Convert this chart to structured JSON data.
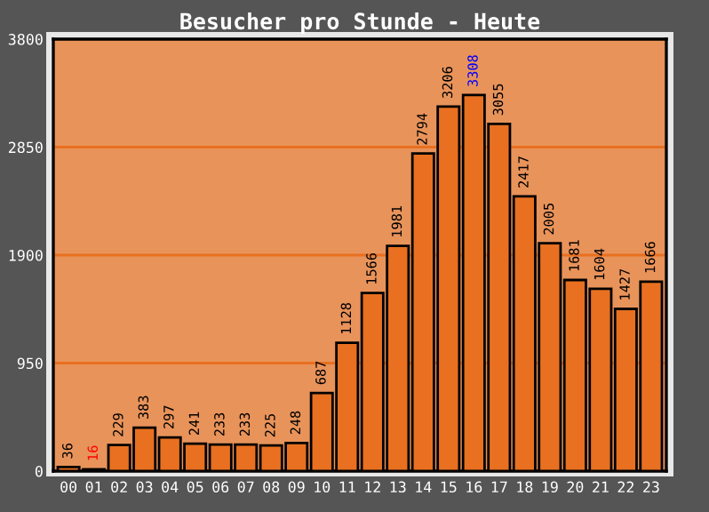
{
  "chart_data": {
    "type": "bar",
    "title": "Besucher pro Stunde - Heute",
    "categories": [
      "00",
      "01",
      "02",
      "03",
      "04",
      "05",
      "06",
      "07",
      "08",
      "09",
      "10",
      "11",
      "12",
      "13",
      "14",
      "15",
      "16",
      "17",
      "18",
      "19",
      "20",
      "21",
      "22",
      "23"
    ],
    "values": [
      36,
      16,
      229,
      383,
      297,
      241,
      233,
      233,
      225,
      248,
      687,
      1128,
      1566,
      1981,
      2794,
      3206,
      3308,
      3055,
      2417,
      2005,
      1681,
      1604,
      1427,
      1666
    ],
    "color": "#e87020",
    "ylim": [
      0,
      3800
    ],
    "yticks": [
      0,
      950,
      1900,
      2850,
      3800
    ],
    "grid": "y",
    "data_labels": true
  }
}
